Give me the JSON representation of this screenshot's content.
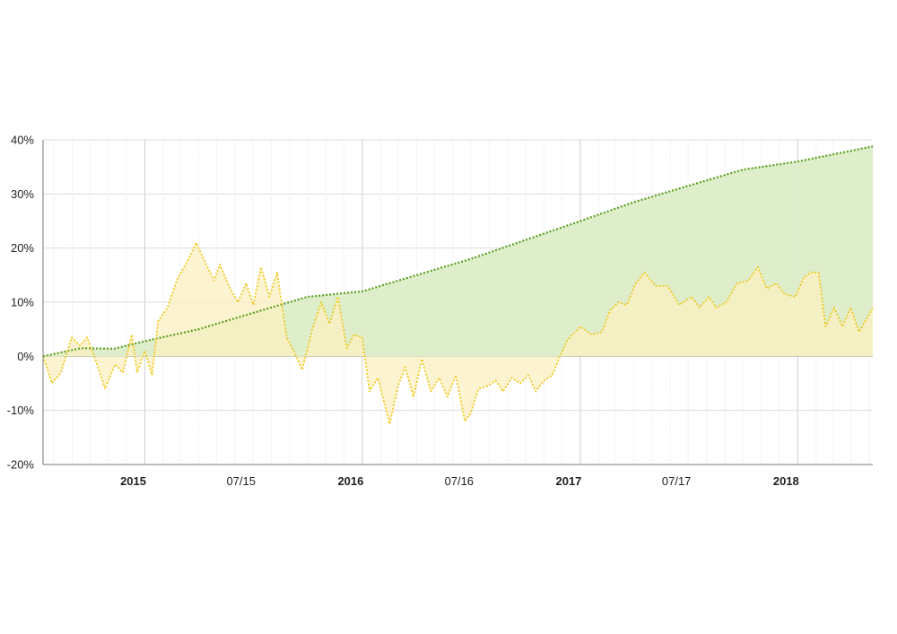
{
  "chart_data": {
    "type": "area",
    "title": "",
    "xlabel": "",
    "ylabel": "",
    "ylim": [
      -20,
      40
    ],
    "yticks": [
      40,
      30,
      20,
      10,
      0,
      -10,
      -20
    ],
    "ytick_labels": [
      "40%",
      "30%",
      "20%",
      "10%",
      "0%",
      "-10%",
      "-20%"
    ],
    "xlim": [
      "2014-07-14",
      "2018-05-07"
    ],
    "xticks": [
      {
        "date": "2015-01-01",
        "label": "2015",
        "major": true
      },
      {
        "date": "2015-07-01",
        "label": "07/15",
        "major": false
      },
      {
        "date": "2016-01-01",
        "label": "2016",
        "major": true
      },
      {
        "date": "2016-07-01",
        "label": "07/16",
        "major": false
      },
      {
        "date": "2017-01-01",
        "label": "2017",
        "major": true
      },
      {
        "date": "2017-07-01",
        "label": "07/17",
        "major": false
      },
      {
        "date": "2018-01-01",
        "label": "2018",
        "major": true
      }
    ],
    "grid": true,
    "colors": {
      "green": "#5a9e1e",
      "green_fill": "#dcedc8",
      "yellow": "#f2c81b",
      "yellow_fill": "#fbf0c0"
    },
    "series": [
      {
        "color": "green",
        "points": [
          [
            "2014-07-14",
            0
          ],
          [
            "2014-09-15",
            1.5
          ],
          [
            "2014-11-10",
            1.4
          ],
          [
            "2015-01-01",
            2.8
          ],
          [
            "2015-04-01",
            5.0
          ],
          [
            "2015-07-01",
            8.0
          ],
          [
            "2015-10-01",
            11.0
          ],
          [
            "2016-01-01",
            12.0
          ],
          [
            "2016-04-01",
            15.0
          ],
          [
            "2016-07-01",
            18.0
          ],
          [
            "2016-10-01",
            21.5
          ],
          [
            "2017-01-01",
            25.0
          ],
          [
            "2017-04-01",
            28.5
          ],
          [
            "2017-07-01",
            31.5
          ],
          [
            "2017-10-01",
            34.5
          ],
          [
            "2018-01-01",
            36.0
          ],
          [
            "2018-05-07",
            38.8
          ]
        ]
      },
      {
        "color": "yellow",
        "points": [
          [
            "2014-07-14",
            0
          ],
          [
            "2014-07-29",
            -5
          ],
          [
            "2014-08-13",
            -3
          ],
          [
            "2014-08-31",
            3.5
          ],
          [
            "2014-09-14",
            2
          ],
          [
            "2014-09-26",
            3.5
          ],
          [
            "2014-10-11",
            -1
          ],
          [
            "2014-10-26",
            -6
          ],
          [
            "2014-11-12",
            -1.5
          ],
          [
            "2014-11-25",
            -3
          ],
          [
            "2014-12-10",
            4
          ],
          [
            "2014-12-19",
            -3
          ],
          [
            "2015-01-01",
            1
          ],
          [
            "2015-01-13",
            -3.5
          ],
          [
            "2015-01-23",
            6.5
          ],
          [
            "2015-02-08",
            9
          ],
          [
            "2015-02-25",
            14.5
          ],
          [
            "2015-03-13",
            17.5
          ],
          [
            "2015-03-28",
            21
          ],
          [
            "2015-04-14",
            17
          ],
          [
            "2015-04-27",
            14
          ],
          [
            "2015-05-07",
            17
          ],
          [
            "2015-05-22",
            13
          ],
          [
            "2015-06-06",
            10
          ],
          [
            "2015-06-20",
            13.5
          ],
          [
            "2015-07-02",
            9.5
          ],
          [
            "2015-07-15",
            16.5
          ],
          [
            "2015-07-29",
            11
          ],
          [
            "2015-08-11",
            15.5
          ],
          [
            "2015-08-27",
            3.5
          ],
          [
            "2015-09-08",
            1
          ],
          [
            "2015-09-22",
            -2.5
          ],
          [
            "2015-10-09",
            5
          ],
          [
            "2015-10-24",
            10
          ],
          [
            "2015-11-07",
            6
          ],
          [
            "2015-11-21",
            11
          ],
          [
            "2015-12-06",
            1.5
          ],
          [
            "2015-12-18",
            4
          ],
          [
            "2016-01-01",
            3.5
          ],
          [
            "2016-01-13",
            -6.5
          ],
          [
            "2016-01-27",
            -4
          ],
          [
            "2016-02-16",
            -12.5
          ],
          [
            "2016-03-01",
            -5.5
          ],
          [
            "2016-03-13",
            -2
          ],
          [
            "2016-03-27",
            -7.5
          ],
          [
            "2016-04-10",
            -0.5
          ],
          [
            "2016-04-25",
            -6.5
          ],
          [
            "2016-05-09",
            -4
          ],
          [
            "2016-05-23",
            -7.5
          ],
          [
            "2016-06-06",
            -3.5
          ],
          [
            "2016-06-21",
            -12
          ],
          [
            "2016-07-01",
            -10.5
          ],
          [
            "2016-07-14",
            -6
          ],
          [
            "2016-07-29",
            -5.5
          ],
          [
            "2016-08-12",
            -4.5
          ],
          [
            "2016-08-24",
            -6.5
          ],
          [
            "2016-09-08",
            -4
          ],
          [
            "2016-09-22",
            -5
          ],
          [
            "2016-10-06",
            -3.5
          ],
          [
            "2016-10-18",
            -6.5
          ],
          [
            "2016-11-01",
            -4.5
          ],
          [
            "2016-11-15",
            -3.5
          ],
          [
            "2016-11-28",
            0
          ],
          [
            "2016-12-10",
            3
          ],
          [
            "2017-01-01",
            5.5
          ],
          [
            "2017-01-20",
            4
          ],
          [
            "2017-02-06",
            4.5
          ],
          [
            "2017-02-20",
            8.5
          ],
          [
            "2017-03-06",
            10
          ],
          [
            "2017-03-20",
            9.5
          ],
          [
            "2017-04-04",
            13.5
          ],
          [
            "2017-04-19",
            15.5
          ],
          [
            "2017-05-07",
            13
          ],
          [
            "2017-05-28",
            13
          ],
          [
            "2017-06-16",
            9.5
          ],
          [
            "2017-07-07",
            11
          ],
          [
            "2017-07-20",
            9
          ],
          [
            "2017-08-05",
            11
          ],
          [
            "2017-08-17",
            9
          ],
          [
            "2017-09-03",
            10
          ],
          [
            "2017-09-21",
            13.5
          ],
          [
            "2017-10-10",
            14
          ],
          [
            "2017-10-26",
            16.5
          ],
          [
            "2017-11-10",
            12.5
          ],
          [
            "2017-11-26",
            13.5
          ],
          [
            "2017-12-10",
            11.5
          ],
          [
            "2017-12-28",
            11
          ],
          [
            "2018-01-11",
            14.5
          ],
          [
            "2018-01-23",
            15.5
          ],
          [
            "2018-02-05",
            15.5
          ],
          [
            "2018-02-17",
            5.5
          ],
          [
            "2018-03-03",
            9
          ],
          [
            "2018-03-17",
            5.5
          ],
          [
            "2018-03-31",
            9
          ],
          [
            "2018-04-14",
            4.5
          ],
          [
            "2018-05-07",
            9
          ]
        ]
      }
    ]
  }
}
